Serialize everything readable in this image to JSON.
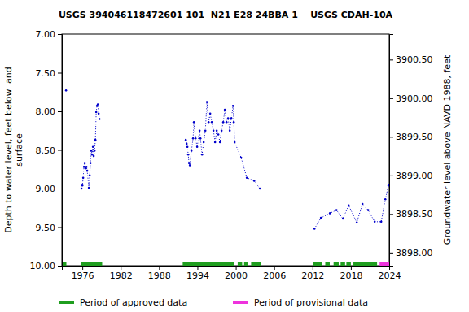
{
  "chart_data": {
    "type": "line",
    "title": "USGS 394046118472601 101  N21 E28 24BBA 1    USGS CDAH-10A",
    "ylabel": [
      "Depth to water level, feet below land",
      "surface"
    ],
    "y2label": "Groundwater level above NAVD 1988, feet",
    "xlim": [
      1972.8,
      2024
    ],
    "xticks": [
      1976,
      1982,
      1988,
      1994,
      2000,
      2006,
      2012,
      2018,
      2024
    ],
    "ylim": [
      7,
      10
    ],
    "yticks": [
      {
        "value": 7,
        "label": "7.00"
      },
      {
        "value": 7.5,
        "label": "7.50"
      },
      {
        "value": 8,
        "label": "8.00"
      },
      {
        "value": 8.5,
        "label": "8.50"
      },
      {
        "value": 9,
        "label": "9.00"
      },
      {
        "value": 9.5,
        "label": "9.50"
      },
      {
        "value": 10,
        "label": "10.00"
      }
    ],
    "y2lim": [
      3900.83,
      3897.83
    ],
    "y2ticks": [
      {
        "value": 3898,
        "label": "3898.00"
      },
      {
        "value": 3898.5,
        "label": "3898.50"
      },
      {
        "value": 3899,
        "label": "3899.00"
      },
      {
        "value": 3899.5,
        "label": "3899.50"
      },
      {
        "value": 3900,
        "label": "3900.00"
      },
      {
        "value": 3900.5,
        "label": "3900.50"
      }
    ],
    "grid": false,
    "series": [
      {
        "name": "Depth to water level",
        "color": "#0000cc",
        "marker": "point",
        "line_style": "dotted",
        "x": [
          1973.45,
          1974.6,
          1975.87,
          1976.0,
          1976.13,
          1976.25,
          1976.38,
          1976.51,
          1976.64,
          1976.76,
          1977.02,
          1977.15,
          1977.27,
          1977.4,
          1977.53,
          1977.66,
          1977.78,
          1977.91,
          1978.04,
          1978.17,
          1978.29,
          1978.42,
          1978.55,
          1978.68,
          1985.0,
          1992.18,
          1992.31,
          1992.43,
          1992.56,
          1992.69,
          1992.82,
          1993.07,
          1993.32,
          1993.45,
          1993.71,
          1993.96,
          1994.34,
          1994.47,
          1994.73,
          1994.98,
          1995.24,
          1995.49,
          1995.75,
          1996.0,
          1996.25,
          1996.51,
          1996.76,
          1997.02,
          1997.27,
          1997.53,
          1997.78,
          1998.04,
          1998.29,
          1998.55,
          1998.8,
          1999.06,
          1999.31,
          1999.57,
          1999.69,
          1999.82,
          2000.84,
          2001.73,
          2002.88,
          2003.77,
          2008.0,
          2012.31,
          2013.32,
          2014.73,
          2015.75,
          2016.76,
          2017.66,
          2018.93,
          2019.82,
          2020.71,
          2021.73,
          2022.75,
          2023.39,
          2023.9
        ],
        "values": [
          7.73,
          null,
          9.0,
          8.96,
          8.86,
          8.72,
          8.67,
          8.74,
          8.72,
          8.77,
          8.99,
          8.83,
          8.67,
          8.51,
          8.56,
          8.46,
          8.58,
          8.51,
          8.37,
          8.01,
          7.93,
          7.91,
          8.03,
          8.1,
          null,
          8.37,
          8.42,
          8.46,
          8.56,
          8.67,
          8.7,
          8.51,
          8.35,
          8.14,
          8.35,
          8.46,
          8.25,
          8.35,
          8.56,
          8.4,
          8.25,
          7.88,
          8.14,
          8.03,
          8.14,
          8.25,
          8.4,
          8.25,
          8.3,
          8.4,
          8.25,
          8.14,
          7.98,
          8.14,
          8.09,
          8.25,
          8.09,
          7.93,
          8.14,
          8.4,
          8.6,
          8.86,
          8.9,
          9.0,
          null,
          9.52,
          9.38,
          9.32,
          9.28,
          9.39,
          9.22,
          9.44,
          9.2,
          9.28,
          9.43,
          9.43,
          9.14,
          8.96
        ]
      }
    ],
    "periods": [
      {
        "name": "Period of approved data",
        "color": "#1f9e1f",
        "ranges": [
          [
            1972.8,
            1973.5
          ],
          [
            1975.8,
            1979.1
          ],
          [
            1991.7,
            1999.8
          ],
          [
            2000.3,
            2001.0
          ],
          [
            2001.3,
            2001.9
          ],
          [
            2002.4,
            2004.0
          ],
          [
            2012.1,
            2013.5
          ],
          [
            2014.0,
            2014.7
          ],
          [
            2015.3,
            2016.1
          ],
          [
            2016.4,
            2017.1
          ],
          [
            2017.3,
            2018.0
          ],
          [
            2018.4,
            2022.1
          ]
        ]
      },
      {
        "name": "Period of provisional data",
        "color": "#ee33dd",
        "ranges": [
          [
            2022.5,
            2024
          ]
        ]
      }
    ]
  }
}
